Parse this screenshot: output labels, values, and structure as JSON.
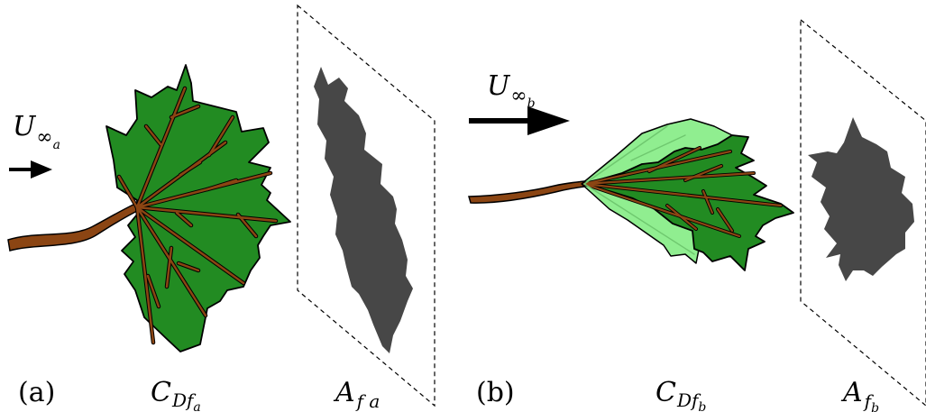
{
  "panels": [
    {
      "id": "a",
      "panel_label": "(a)",
      "velocity": {
        "symbol": "U",
        "sub": "∞",
        "subsub": "a"
      },
      "drag_coeff": {
        "symbol": "C",
        "sub": "Df",
        "subsub": "a"
      },
      "area": {
        "symbol": "A",
        "sub": "f a"
      }
    },
    {
      "id": "b",
      "panel_label": "(b)",
      "velocity": {
        "symbol": "U",
        "sub": "∞",
        "subsub": "b"
      },
      "drag_coeff": {
        "symbol": "C",
        "sub": "Df",
        "subsub": "b"
      },
      "area": {
        "symbol": "A",
        "sub": "f",
        "subsub": "b"
      }
    }
  ],
  "colors": {
    "leaf_dark": "#228b22",
    "leaf_light": "#90ee90",
    "stem": "#8b4513",
    "shadow": "#474747",
    "outline": "#000000"
  }
}
